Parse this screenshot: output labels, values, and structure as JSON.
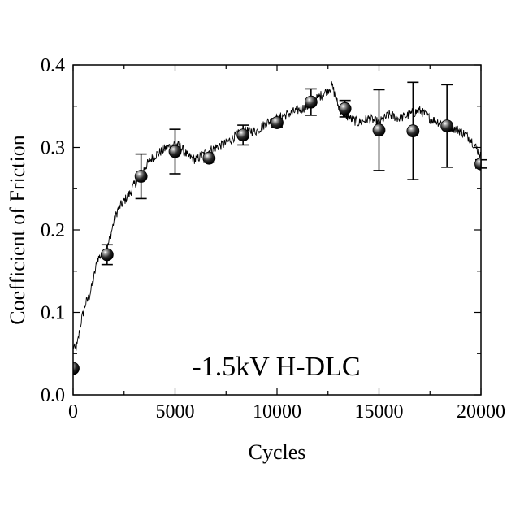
{
  "chart_data": {
    "type": "line",
    "title": "",
    "xlabel": "Cycles",
    "ylabel": "Coefficient of Friction",
    "xlim": [
      0,
      20000
    ],
    "ylim": [
      0.0,
      0.4
    ],
    "xticks": [
      0,
      5000,
      10000,
      15000,
      20000
    ],
    "xtick_labels": [
      "0",
      "5000",
      "10000",
      "15000",
      "20000"
    ],
    "yticks": [
      0.0,
      0.1,
      0.2,
      0.3,
      0.4
    ],
    "ytick_labels": [
      "0.0",
      "0.1",
      "0.2",
      "0.3",
      "0.4"
    ],
    "grid": false,
    "annotation": "-1.5kV H-DLC",
    "series": [
      {
        "kind": "line",
        "color": "#000000",
        "x": [
          0,
          100,
          200,
          400,
          600,
          800,
          1000,
          1200,
          1400,
          1600,
          1800,
          2000,
          2200,
          2500,
          2800,
          3000,
          3200,
          3500,
          3800,
          4000,
          4300,
          4600,
          5000,
          5300,
          5600,
          6000,
          6300,
          6600,
          7000,
          7500,
          8000,
          8500,
          9000,
          9500,
          10000,
          10500,
          11000,
          11500,
          12000,
          12500,
          12700,
          13000,
          13300,
          13600,
          14000,
          14500,
          15000,
          15500,
          16000,
          16500,
          17000,
          17500,
          18000,
          18500,
          19000,
          19500,
          20000
        ],
        "y": [
          0.06,
          0.055,
          0.06,
          0.09,
          0.11,
          0.12,
          0.14,
          0.165,
          0.17,
          0.17,
          0.19,
          0.21,
          0.225,
          0.235,
          0.245,
          0.255,
          0.26,
          0.275,
          0.285,
          0.29,
          0.295,
          0.3,
          0.305,
          0.3,
          0.29,
          0.285,
          0.29,
          0.295,
          0.3,
          0.305,
          0.315,
          0.32,
          0.32,
          0.33,
          0.335,
          0.34,
          0.345,
          0.35,
          0.36,
          0.37,
          0.375,
          0.35,
          0.34,
          0.335,
          0.33,
          0.335,
          0.33,
          0.34,
          0.335,
          0.34,
          0.345,
          0.335,
          0.33,
          0.325,
          0.32,
          0.31,
          0.29
        ]
      },
      {
        "kind": "errorbar",
        "marker": "sphere",
        "x": [
          0,
          1667,
          3333,
          5000,
          6667,
          8333,
          10000,
          11667,
          13333,
          15000,
          16667,
          18333,
          20000
        ],
        "y": [
          0.032,
          0.17,
          0.265,
          0.295,
          0.287,
          0.315,
          0.33,
          0.355,
          0.347,
          0.321,
          0.32,
          0.326,
          0.28
        ],
        "err": [
          0.0,
          0.012,
          0.027,
          0.027,
          0.005,
          0.012,
          0.005,
          0.016,
          0.01,
          0.049,
          0.059,
          0.05,
          0.005
        ]
      }
    ]
  }
}
